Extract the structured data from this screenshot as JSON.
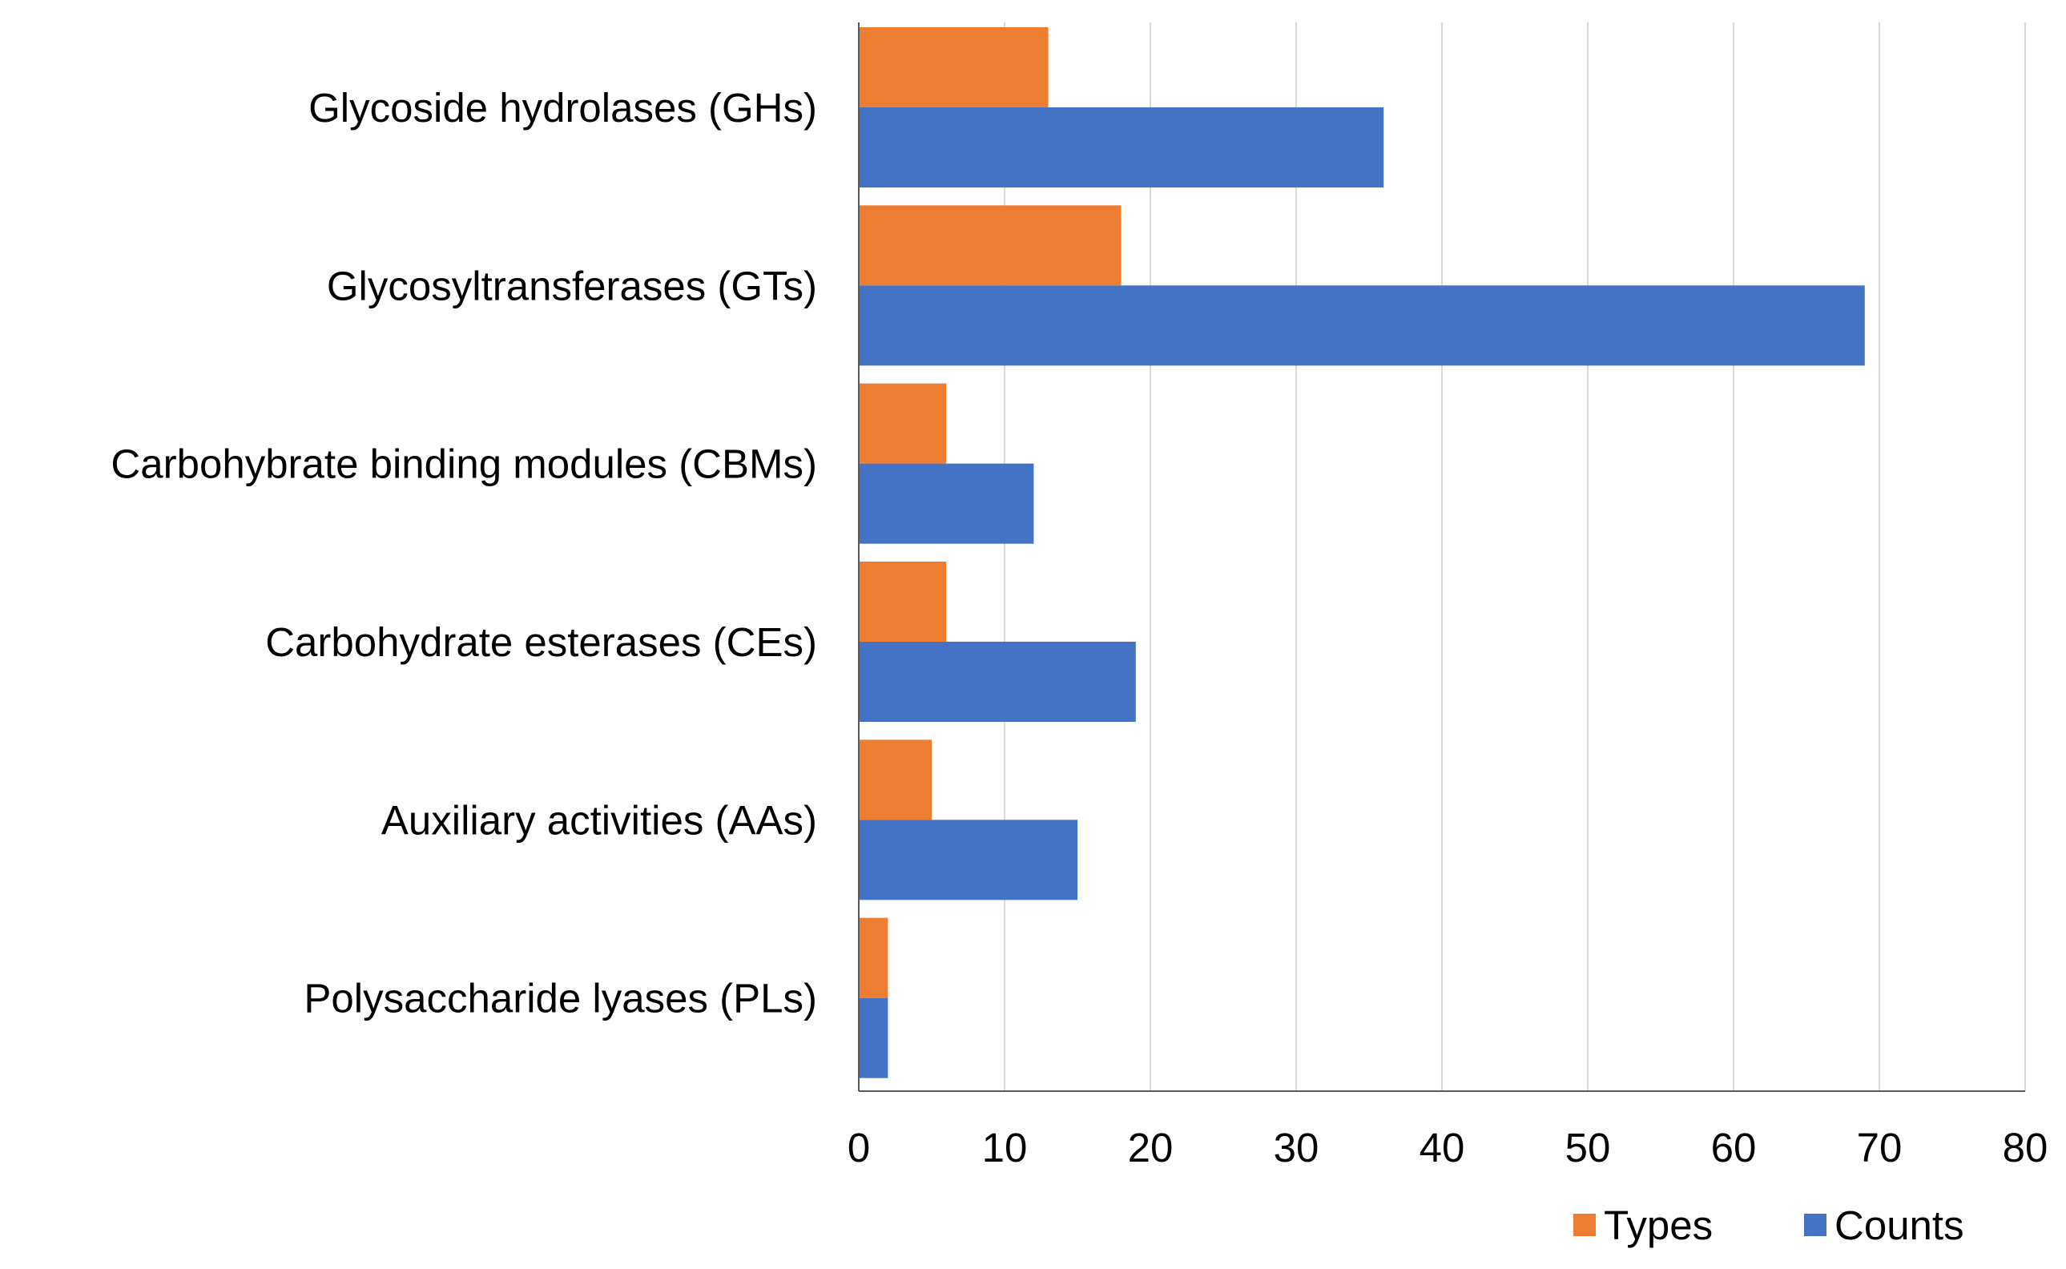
{
  "chart_data": {
    "type": "bar",
    "orientation": "horizontal",
    "categories": [
      "Glycoside hydrolases (GHs)",
      "Glycosyltransferases (GTs)",
      "Carbohybrate binding modules (CBMs)",
      "Carbohydrate esterases (CEs)",
      "Auxiliary activities (AAs)",
      "Polysaccharide lyases (PLs)"
    ],
    "series": [
      {
        "name": "Types",
        "color": "#ED7D31",
        "values": [
          13,
          18,
          6,
          6,
          5,
          2
        ]
      },
      {
        "name": "Counts",
        "color": "#4472C4",
        "values": [
          36,
          69,
          12,
          19,
          15,
          2
        ]
      }
    ],
    "xlim": [
      0,
      80
    ],
    "xticks": [
      "0",
      "10",
      "20",
      "30",
      "40",
      "50",
      "60",
      "70",
      "80"
    ],
    "title": "",
    "xlabel": "",
    "ylabel": "",
    "grid": "vertical",
    "legend_position": "bottom-right"
  }
}
